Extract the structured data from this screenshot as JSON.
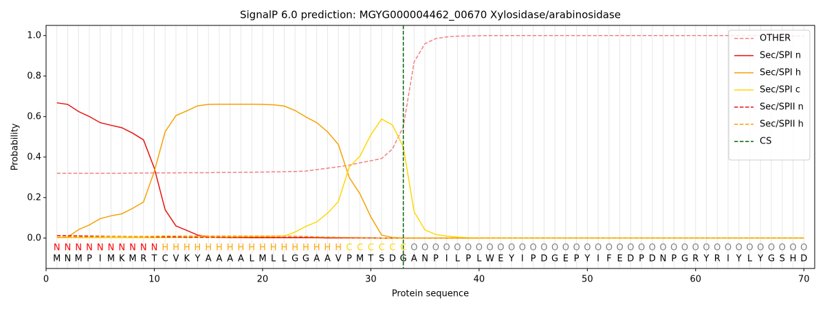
{
  "chart_data": {
    "type": "line",
    "title": "SignalP 6.0 prediction: MGYG000004462_00670 Xylosidase/arabinosidase",
    "xlabel": "Protein sequence",
    "ylabel": "Probability",
    "xlim": [
      0,
      71
    ],
    "ylim": [
      -0.15,
      1.05
    ],
    "xticks": [
      0,
      10,
      20,
      30,
      40,
      50,
      60,
      70
    ],
    "yticks": [
      {
        "value": 0,
        "label": "0.0"
      },
      {
        "value": 0.2,
        "label": "0.2"
      },
      {
        "value": 0.4,
        "label": "0.4"
      },
      {
        "value": 0.6,
        "label": "0.6"
      },
      {
        "value": 0.8,
        "label": "0.8"
      },
      {
        "value": 1,
        "label": "1.0"
      }
    ],
    "grid": true,
    "legend": "upper right",
    "x": [
      1,
      2,
      3,
      4,
      5,
      6,
      7,
      8,
      9,
      10,
      11,
      12,
      13,
      14,
      15,
      16,
      17,
      18,
      19,
      20,
      21,
      22,
      23,
      24,
      25,
      26,
      27,
      28,
      29,
      30,
      31,
      32,
      33,
      34,
      35,
      36,
      37,
      38,
      39,
      40,
      41,
      42,
      43,
      44,
      45,
      46,
      47,
      48,
      49,
      50,
      51,
      52,
      53,
      54,
      55,
      56,
      57,
      58,
      59,
      60,
      61,
      62,
      63,
      64,
      65,
      66,
      67,
      68,
      69,
      70
    ],
    "sequence": [
      "M",
      "N",
      "M",
      "P",
      "I",
      "M",
      "K",
      "M",
      "R",
      "T",
      "C",
      "V",
      "K",
      "Y",
      "A",
      "A",
      "A",
      "A",
      "L",
      "M",
      "L",
      "L",
      "G",
      "G",
      "A",
      "A",
      "V",
      "P",
      "M",
      "T",
      "S",
      "D",
      "G",
      "A",
      "N",
      "P",
      "I",
      "L",
      "P",
      "L",
      "W",
      "E",
      "Y",
      "I",
      "P",
      "D",
      "G",
      "E",
      "P",
      "Y",
      "I",
      "F",
      "E",
      "D",
      "P",
      "D",
      "N",
      "P",
      "G",
      "R",
      "Y",
      "R",
      "I",
      "Y",
      "L",
      "Y",
      "G",
      "S",
      "H",
      "D"
    ],
    "regions": [
      "N",
      "N",
      "N",
      "N",
      "N",
      "N",
      "N",
      "N",
      "N",
      "N",
      "H",
      "H",
      "H",
      "H",
      "H",
      "H",
      "H",
      "H",
      "H",
      "H",
      "H",
      "H",
      "H",
      "H",
      "H",
      "H",
      "H",
      "C",
      "C",
      "C",
      "C",
      "C",
      "C",
      "O",
      "O",
      "O",
      "O",
      "O",
      "O",
      "O",
      "O",
      "O",
      "O",
      "O",
      "O",
      "O",
      "O",
      "O",
      "O",
      "O",
      "O",
      "O",
      "O",
      "O",
      "O",
      "O",
      "O",
      "O",
      "O",
      "O",
      "O",
      "O",
      "O",
      "O",
      "O",
      "O",
      "O",
      "O",
      "O",
      "O"
    ],
    "region_colors": {
      "N": "red",
      "H": "orange",
      "C": "gold",
      "O": "gray"
    },
    "series": [
      {
        "name": "OTHER",
        "color": "#f08080",
        "dashed": true,
        "values": [
          0.32,
          0.32,
          0.32,
          0.32,
          0.32,
          0.32,
          0.32,
          0.321,
          0.321,
          0.322,
          0.322,
          0.322,
          0.323,
          0.323,
          0.323,
          0.324,
          0.324,
          0.325,
          0.325,
          0.326,
          0.327,
          0.328,
          0.329,
          0.331,
          0.338,
          0.345,
          0.352,
          0.36,
          0.372,
          0.382,
          0.393,
          0.44,
          0.55,
          0.87,
          0.96,
          0.985,
          0.993,
          0.997,
          0.998,
          0.999,
          1,
          1,
          1,
          1,
          1,
          1,
          1,
          1,
          1,
          1,
          1,
          1,
          1,
          1,
          1,
          1,
          1,
          1,
          1,
          1,
          1,
          1,
          1,
          1,
          1,
          0.999,
          0.999,
          0.998,
          0.998,
          0.998
        ]
      },
      {
        "name": "Sec/SPI n",
        "color": "#e8100f",
        "dashed": false,
        "values": [
          0.668,
          0.66,
          0.625,
          0.6,
          0.57,
          0.557,
          0.545,
          0.518,
          0.485,
          0.345,
          0.14,
          0.06,
          0.038,
          0.015,
          0.006,
          0.004,
          0.003,
          0.003,
          0.002,
          0.002,
          0.002,
          0.002,
          0.002,
          0.002,
          0.002,
          0.001,
          0.001,
          0.001,
          0.001,
          0.001,
          0,
          0,
          0,
          0,
          0,
          0,
          0,
          0,
          0,
          0,
          0,
          0,
          0,
          0,
          0,
          0,
          0,
          0,
          0,
          0,
          0,
          0,
          0,
          0,
          0,
          0,
          0,
          0,
          0,
          0,
          0,
          0,
          0,
          0,
          0,
          0,
          0,
          0,
          0,
          0
        ]
      },
      {
        "name": "Sec/SPI h",
        "color": "#f5a000",
        "dashed": false,
        "values": [
          0.003,
          0.005,
          0.042,
          0.065,
          0.096,
          0.11,
          0.12,
          0.147,
          0.178,
          0.33,
          0.525,
          0.605,
          0.628,
          0.653,
          0.66,
          0.661,
          0.661,
          0.661,
          0.661,
          0.66,
          0.658,
          0.652,
          0.63,
          0.598,
          0.57,
          0.525,
          0.462,
          0.3,
          0.218,
          0.105,
          0.015,
          0.003,
          0.001,
          0.001,
          0.001,
          0.001,
          0.001,
          0.001,
          0.001,
          0.001,
          0.001,
          0.001,
          0.001,
          0.001,
          0.001,
          0.001,
          0.001,
          0.001,
          0.001,
          0.001,
          0.001,
          0.001,
          0.001,
          0.001,
          0.001,
          0.001,
          0.001,
          0.001,
          0.001,
          0.001,
          0.001,
          0.001,
          0.001,
          0.001,
          0.001,
          0.001,
          0.001,
          0.001,
          0.001,
          0.001
        ]
      },
      {
        "name": "Sec/SPI c",
        "color": "#ffd700",
        "dashed": false,
        "values": [
          0.002,
          0.002,
          0.002,
          0.002,
          0.002,
          0.002,
          0.002,
          0.002,
          0.002,
          0.002,
          0.003,
          0.004,
          0.004,
          0.005,
          0.005,
          0.006,
          0.006,
          0.007,
          0.007,
          0.008,
          0.009,
          0.01,
          0.03,
          0.058,
          0.08,
          0.123,
          0.18,
          0.35,
          0.405,
          0.51,
          0.588,
          0.558,
          0.45,
          0.13,
          0.04,
          0.018,
          0.01,
          0.005,
          0.002,
          0.001,
          0,
          0,
          0,
          0,
          0,
          0,
          0,
          0,
          0,
          0,
          0,
          0,
          0,
          0,
          0,
          0,
          0,
          0,
          0,
          0,
          0,
          0,
          0,
          0,
          0,
          0,
          0,
          0,
          0,
          0
        ]
      },
      {
        "name": "Sec/SPII n",
        "color": "#e8100f",
        "dashed": true,
        "values": [
          0.012,
          0.012,
          0.011,
          0.01,
          0.009,
          0.008,
          0.008,
          0.007,
          0.007,
          0.006,
          0.005,
          0.005,
          0.004,
          0.004,
          0.004,
          0.004,
          0.003,
          0.003,
          0.003,
          0.003,
          0.003,
          0.003,
          0.003,
          0.003,
          0.002,
          0.002,
          0.002,
          0.002,
          0.002,
          0.001,
          0,
          0,
          0,
          0,
          0,
          0,
          0,
          0,
          0,
          0,
          0,
          0,
          0,
          0,
          0,
          0,
          0,
          0,
          0,
          0,
          0,
          0,
          0,
          0,
          0,
          0,
          0,
          0,
          0,
          0,
          0,
          0,
          0,
          0,
          0,
          0,
          0,
          0,
          0,
          0
        ]
      },
      {
        "name": "Sec/SPII h",
        "color": "#f5a000",
        "dashed": true,
        "values": [
          0.004,
          0.005,
          0.005,
          0.006,
          0.006,
          0.007,
          0.007,
          0.008,
          0.008,
          0.009,
          0.01,
          0.01,
          0.01,
          0.01,
          0.01,
          0.01,
          0.01,
          0.01,
          0.01,
          0.01,
          0.01,
          0.01,
          0.009,
          0.008,
          0.006,
          0.005,
          0.004,
          0.003,
          0.002,
          0.001,
          0,
          0,
          0,
          0,
          0,
          0,
          0,
          0,
          0,
          0,
          0,
          0,
          0,
          0,
          0,
          0,
          0,
          0,
          0,
          0,
          0,
          0,
          0,
          0,
          0,
          0,
          0,
          0,
          0,
          0,
          0,
          0,
          0,
          0,
          0,
          0,
          0,
          0,
          0,
          0
        ]
      }
    ],
    "cs": {
      "name": "CS",
      "x": 33,
      "color": "#006400"
    }
  }
}
